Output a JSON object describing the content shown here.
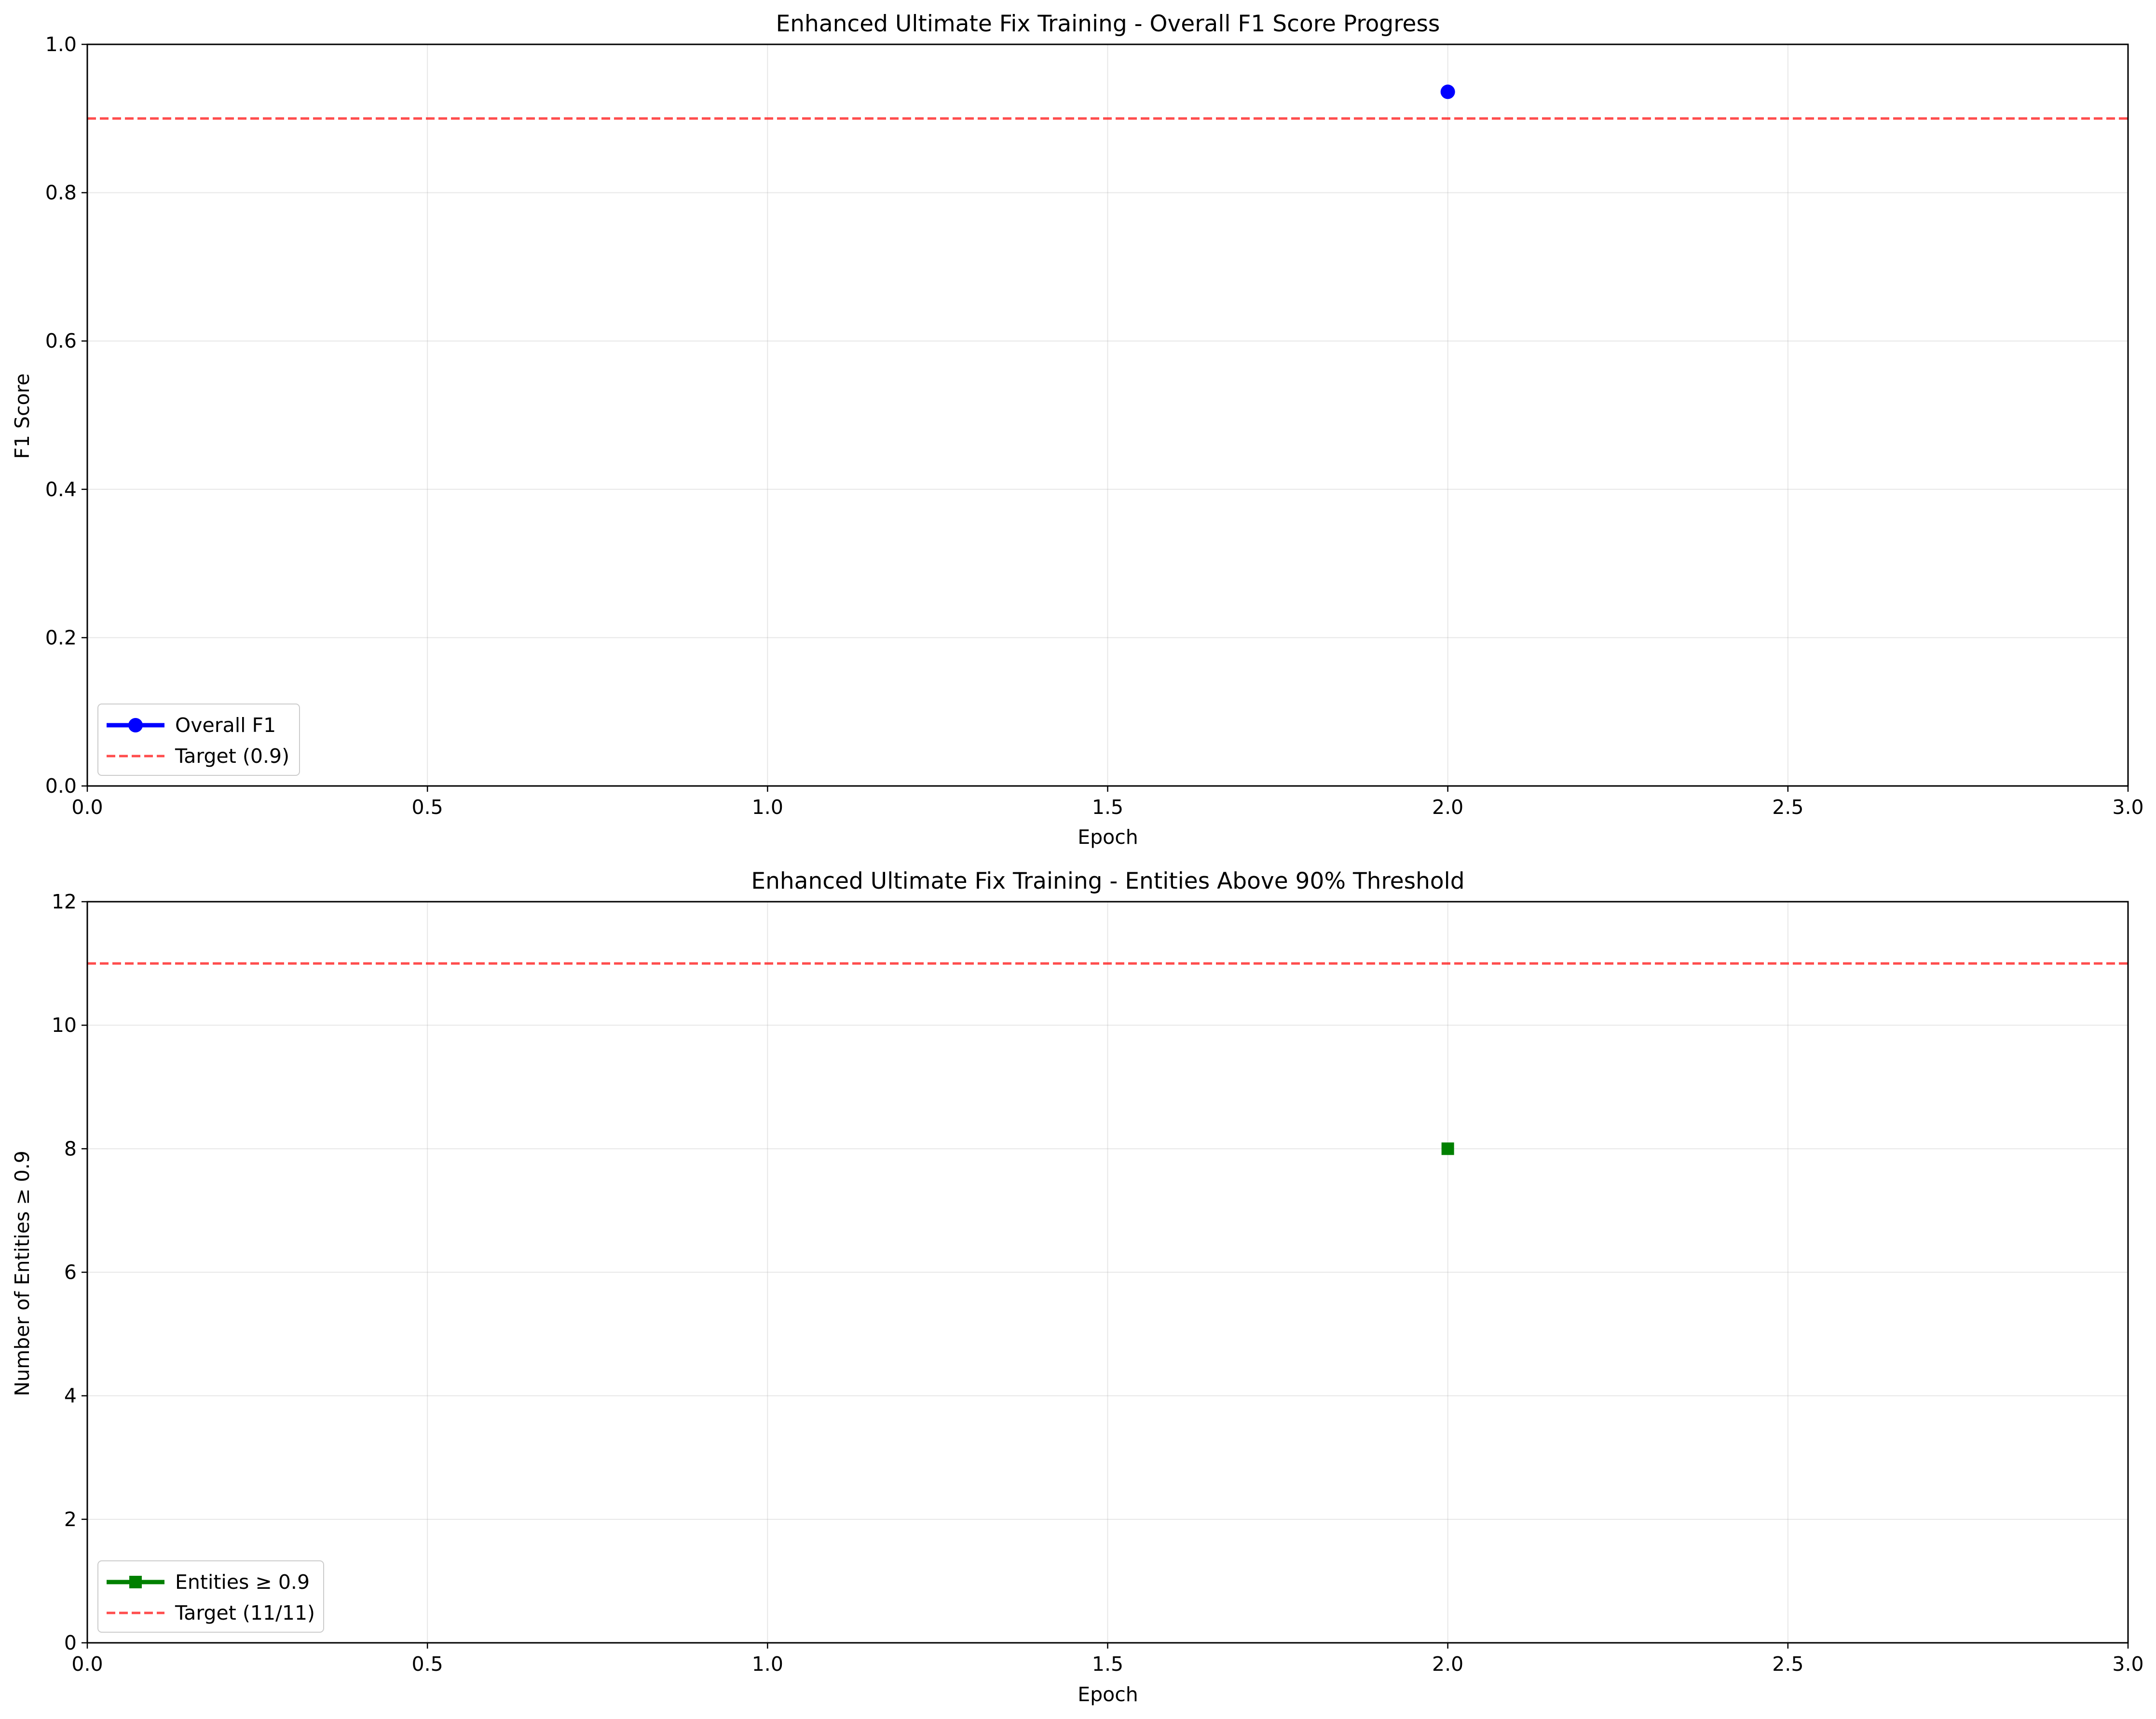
{
  "chart_data": [
    {
      "type": "line",
      "title": "Enhanced Ultimate Fix Training - Overall F1 Score Progress",
      "xlabel": "Epoch",
      "ylabel": "F1 Score",
      "xlim": [
        0,
        3
      ],
      "ylim": [
        0,
        1
      ],
      "xticks": [
        0,
        0.5,
        1,
        1.5,
        2,
        2.5,
        3
      ],
      "xtick_labels": [
        "0.0",
        "0.5",
        "1.0",
        "1.5",
        "2.0",
        "2.5",
        "3.0"
      ],
      "yticks": [
        0,
        0.2,
        0.4,
        0.6,
        0.8,
        1
      ],
      "ytick_labels": [
        "0.0",
        "0.2",
        "0.4",
        "0.6",
        "0.8",
        "1.0"
      ],
      "grid": true,
      "legend_position": "lower-left",
      "series": [
        {
          "name": "Overall F1",
          "x": [
            2
          ],
          "y": [
            0.936
          ],
          "color": "#0000ff",
          "marker": "circle"
        }
      ],
      "reference_lines": [
        {
          "name": "Target (0.9)",
          "y": 0.9,
          "color": "#ff0000",
          "style": "dashed"
        }
      ]
    },
    {
      "type": "line",
      "title": "Enhanced Ultimate Fix Training - Entities Above 90% Threshold",
      "xlabel": "Epoch",
      "ylabel": "Number of Entities ≥ 0.9",
      "xlim": [
        0,
        3
      ],
      "ylim": [
        0,
        12
      ],
      "xticks": [
        0,
        0.5,
        1,
        1.5,
        2,
        2.5,
        3
      ],
      "xtick_labels": [
        "0.0",
        "0.5",
        "1.0",
        "1.5",
        "2.0",
        "2.5",
        "3.0"
      ],
      "yticks": [
        0,
        2,
        4,
        6,
        8,
        10,
        12
      ],
      "ytick_labels": [
        "0",
        "2",
        "4",
        "6",
        "8",
        "10",
        "12"
      ],
      "grid": true,
      "legend_position": "lower-left",
      "series": [
        {
          "name": "Entities ≥ 0.9",
          "x": [
            2
          ],
          "y": [
            8
          ],
          "color": "#008000",
          "marker": "square"
        }
      ],
      "reference_lines": [
        {
          "name": "Target (11/11)",
          "y": 11,
          "color": "#ff0000",
          "style": "dashed"
        }
      ]
    }
  ]
}
